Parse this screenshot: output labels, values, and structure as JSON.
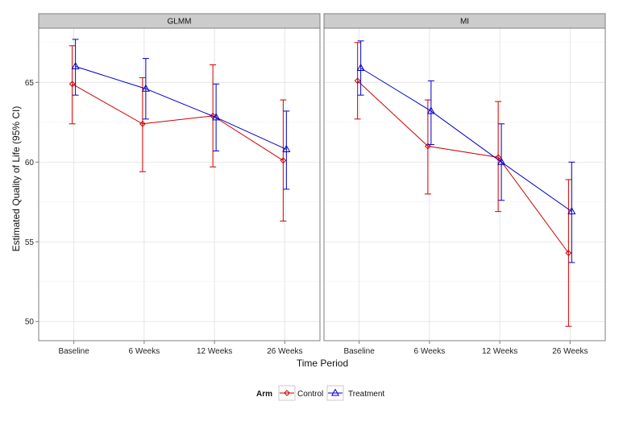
{
  "chart_data": {
    "type": "line",
    "xlabel": "Time Period",
    "ylabel": "Estimated Quality of Life (95% CI)",
    "categories": [
      "Baseline",
      "6 Weeks",
      "12 Weeks",
      "26 Weeks"
    ],
    "ylim": [
      48.8,
      68.4
    ],
    "yticks": [
      50,
      55,
      60,
      65
    ],
    "grid": true,
    "legend": {
      "title": "Arm",
      "placement": "bottom",
      "entries": [
        "Control",
        "Treatment"
      ]
    },
    "colors": {
      "Control": "#cc0000",
      "Treatment": "#0000cc"
    },
    "markers": {
      "Control": "diamond",
      "Treatment": "triangle"
    },
    "panels": [
      {
        "title": "GLMM",
        "series": [
          {
            "name": "Control",
            "values": [
              64.9,
              62.4,
              62.9,
              60.1
            ],
            "lower": [
              62.4,
              59.4,
              59.7,
              56.3
            ],
            "upper": [
              67.3,
              65.3,
              66.1,
              63.9
            ]
          },
          {
            "name": "Treatment",
            "values": [
              66.0,
              64.6,
              62.8,
              60.8
            ],
            "lower": [
              64.2,
              62.7,
              60.7,
              58.3
            ],
            "upper": [
              67.7,
              66.5,
              64.9,
              63.2
            ]
          }
        ]
      },
      {
        "title": "MI",
        "series": [
          {
            "name": "Control",
            "values": [
              65.1,
              61.0,
              60.3,
              54.3
            ],
            "lower": [
              62.7,
              58.0,
              56.9,
              49.7
            ],
            "upper": [
              67.5,
              63.9,
              63.8,
              58.9
            ]
          },
          {
            "name": "Treatment",
            "values": [
              65.9,
              63.2,
              60.0,
              56.9
            ],
            "lower": [
              64.2,
              61.1,
              57.6,
              53.7
            ],
            "upper": [
              67.6,
              65.1,
              62.4,
              60.0
            ]
          }
        ]
      }
    ]
  }
}
